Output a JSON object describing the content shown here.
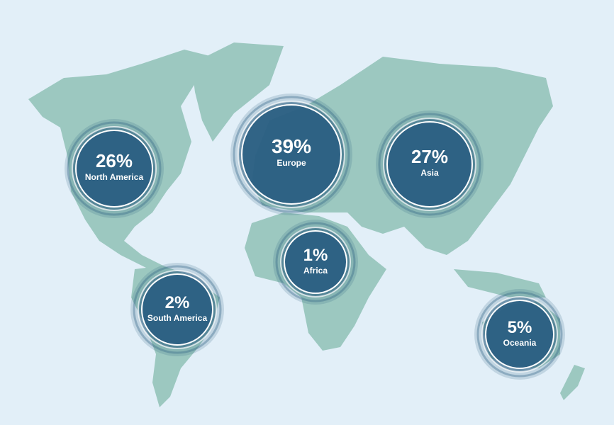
{
  "chart_data": {
    "type": "bubble-map",
    "categories": [
      "North America",
      "Europe",
      "Asia",
      "Africa",
      "South America",
      "Oceania"
    ],
    "values": [
      26,
      39,
      27,
      1,
      2,
      5
    ],
    "value_labels": [
      "26%",
      "39%",
      "27%",
      "1%",
      "2%",
      "5%"
    ],
    "color": "#2b5f82"
  }
}
